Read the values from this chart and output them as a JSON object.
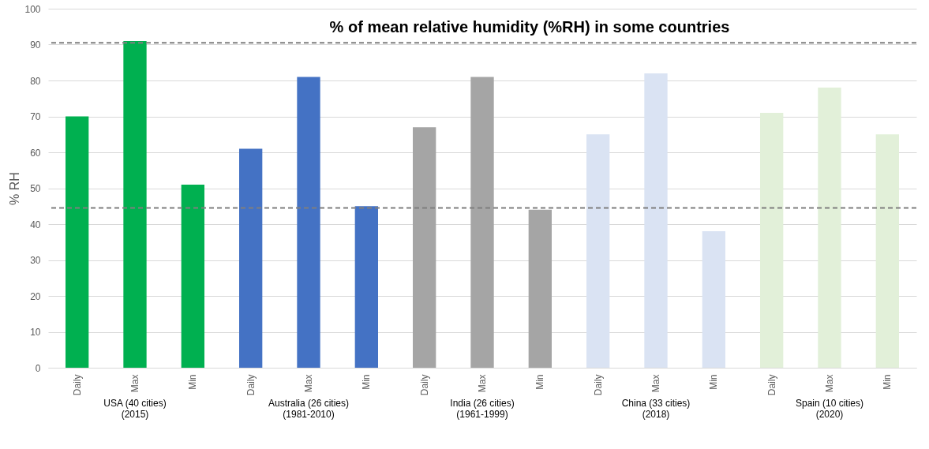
{
  "chart_data": {
    "type": "bar",
    "title": "% of mean relative humidity (%RH) in some countries",
    "ylabel": "% RH",
    "categories": [
      "Daily",
      "Max",
      "Min",
      "Daily",
      "Max",
      "Min",
      "Daily",
      "Max",
      "Min",
      "Daily",
      "Max",
      "Min",
      "Daily",
      "Max",
      "Min"
    ],
    "values": [
      70,
      91,
      51,
      61,
      81,
      45,
      67,
      81,
      44,
      65,
      82,
      38,
      71,
      78,
      65
    ],
    "colors": [
      "#00b050",
      "#00b050",
      "#00b050",
      "#4472c4",
      "#4472c4",
      "#4472c4",
      "#a5a5a5",
      "#a5a5a5",
      "#a5a5a5",
      "#dae3f3",
      "#dae3f3",
      "#dae3f3",
      "#e2f0d9",
      "#e2f0d9",
      "#e2f0d9"
    ],
    "ylim": [
      0,
      100
    ],
    "yticks": [
      0,
      10,
      20,
      30,
      40,
      50,
      60,
      70,
      80,
      90,
      100
    ],
    "grid": "y",
    "ref_lines": [
      {
        "axis": "y",
        "value": 90.5,
        "color": "#7f7f7f",
        "line_style": "dashed"
      },
      {
        "axis": "y",
        "value": 44.5,
        "color": "#7f7f7f",
        "line_style": "dashed"
      }
    ],
    "annotations": [
      "USA (40 cities)\n(2015)",
      "Australia (26 cities)\n(1981-2010)",
      "India (26 cities)\n(1961-1999)",
      "China (33 cities)\n(2018)",
      "Spain  (10 cities)\n(2020)"
    ]
  }
}
